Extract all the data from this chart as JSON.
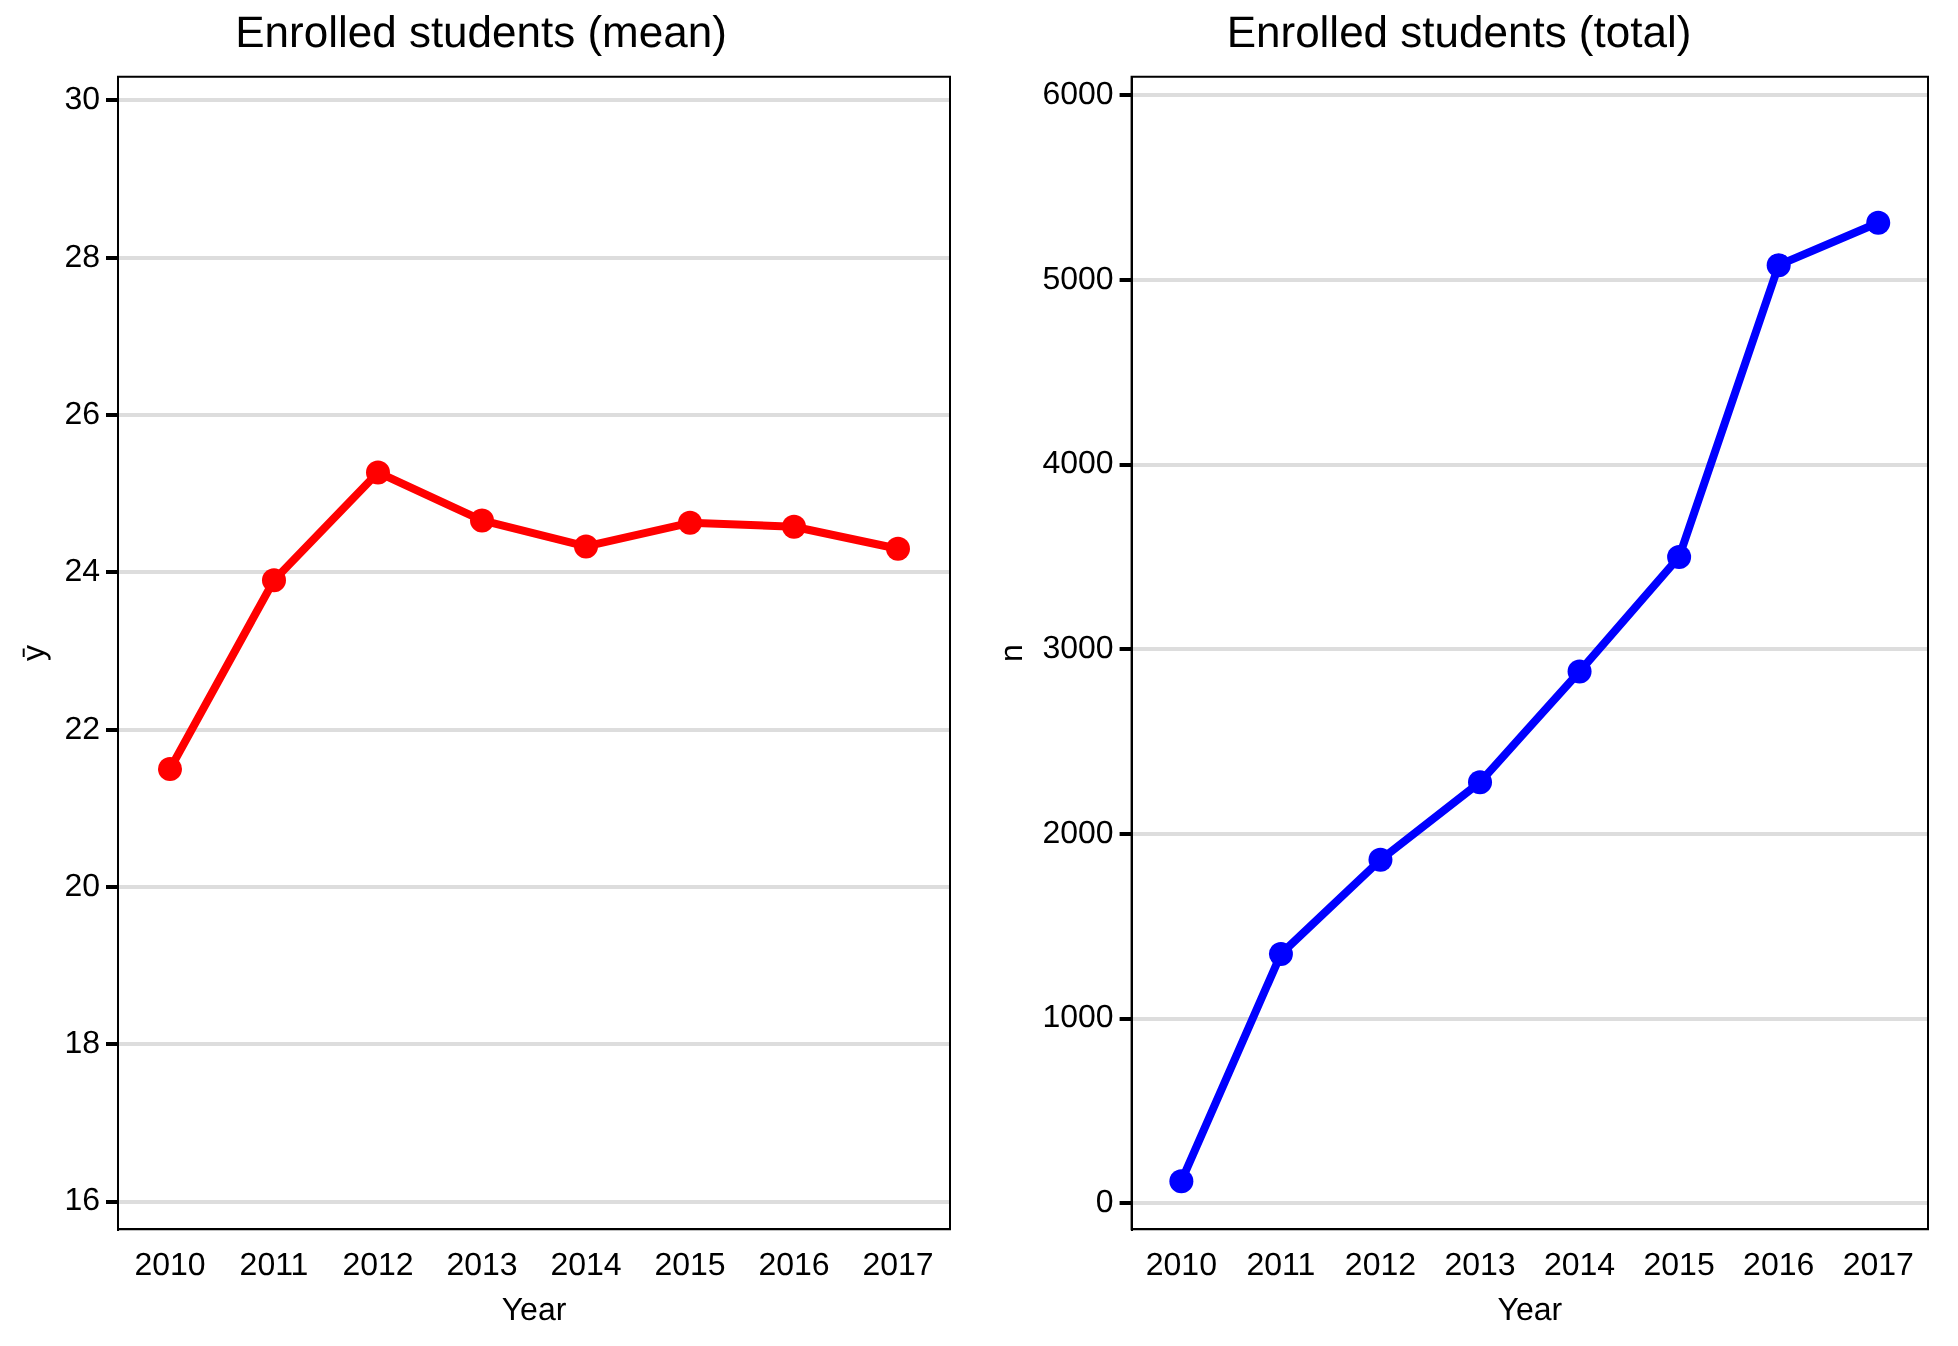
{
  "chart_data": [
    {
      "type": "line",
      "title": "Enrolled students (mean)",
      "xlabel": "Year",
      "ylabel": "ȳ",
      "categories": [
        "2010",
        "2011",
        "2012",
        "2013",
        "2014",
        "2015",
        "2016",
        "2017"
      ],
      "series": [
        {
          "color": "#ff0000",
          "values": [
            21.5,
            23.9,
            25.27,
            24.66,
            24.33,
            24.63,
            24.58,
            24.3
          ]
        }
      ],
      "ylim": [
        15.65,
        30.3
      ],
      "yticks": [
        16,
        18,
        20,
        22,
        24,
        26,
        28,
        30
      ],
      "grid": "y",
      "legend": false,
      "marker": "circle",
      "line_style": "solid"
    },
    {
      "type": "line",
      "title": "Enrolled students (total)",
      "xlabel": "Year",
      "ylabel": "n",
      "categories": [
        "2010",
        "2011",
        "2012",
        "2013",
        "2014",
        "2015",
        "2016",
        "2017"
      ],
      "series": [
        {
          "color": "#0000ff",
          "values": [
            120,
            1350,
            1860,
            2280,
            2880,
            3500,
            5080,
            5310
          ]
        }
      ],
      "ylim": [
        -140,
        6100
      ],
      "yticks": [
        0,
        1000,
        2000,
        3000,
        4000,
        5000,
        6000
      ],
      "grid": "y",
      "legend": false,
      "marker": "circle",
      "line_style": "solid"
    }
  ]
}
